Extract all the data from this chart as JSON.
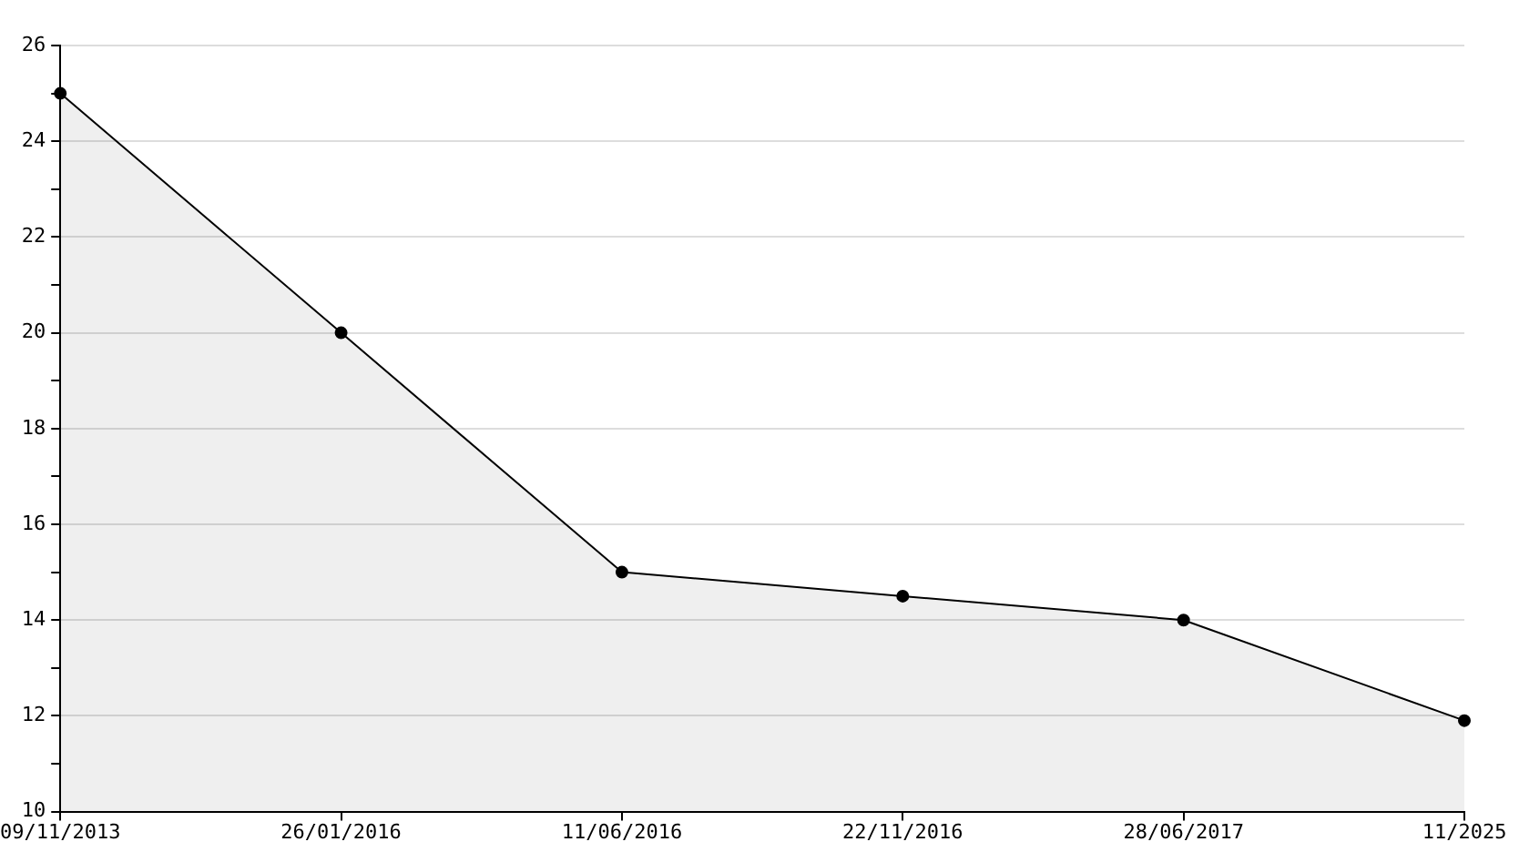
{
  "chart_data": {
    "type": "area",
    "categories": [
      "09/11/2013",
      "26/01/2016",
      "11/06/2016",
      "22/11/2016",
      "28/06/2017",
      "11/2025"
    ],
    "series": [
      {
        "color": "#000000",
        "values": [
          25,
          20,
          15,
          14.5,
          14,
          11.9
        ]
      }
    ],
    "ylim": [
      10,
      26
    ],
    "yticks": [
      10,
      {
        "value": 11,
        "label": null
      },
      12,
      {
        "value": 13,
        "label": null
      },
      14,
      {
        "value": 15,
        "label": null
      },
      16,
      {
        "value": 17,
        "label": null
      },
      18,
      {
        "value": 19,
        "label": null
      },
      20,
      {
        "value": 21,
        "label": null
      },
      22,
      {
        "value": 23,
        "label": null
      },
      24,
      {
        "value": 25,
        "label": null
      },
      26
    ],
    "grid": "y",
    "legend": false,
    "marker": "circle",
    "line_style": "solid"
  }
}
